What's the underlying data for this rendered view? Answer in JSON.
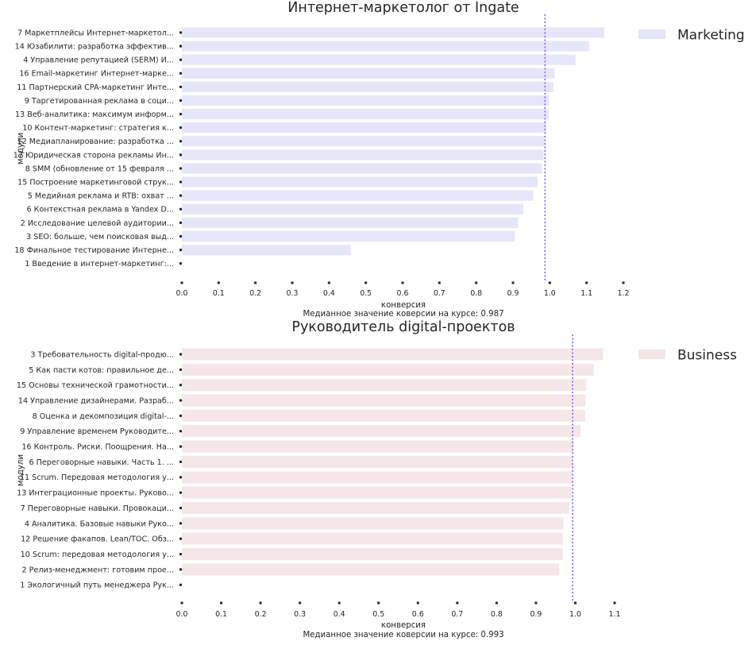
{
  "chart_data": [
    {
      "type": "bar",
      "orientation": "horizontal",
      "title": "Интернет-маркетолог от Ingate",
      "xlabel": "конверсия",
      "ylabel": "модули",
      "footnote": "Медианное значение коверсии на курсе: 0.987",
      "median": 0.987,
      "legend": {
        "label": "Marketing",
        "position": "top-right"
      },
      "color": "#e6e6fa",
      "xlim": [
        0.0,
        1.2
      ],
      "xticks": [
        "0.0",
        "0.1",
        "0.2",
        "0.3",
        "0.4",
        "0.5",
        "0.6",
        "0.7",
        "0.8",
        "0.9",
        "1.0",
        "1.1",
        "1.2"
      ],
      "grid": false,
      "categories": [
        "7 Маркетплейсы Интернет-маркетол...",
        "14 Юзабилити: разработка эффектив...",
        "4 Управление репутацией (SERM) И...",
        "16 Email-маркетинг Интернет-марке...",
        "11 Партнерский CPA-маркетинг Инте...",
        "9 Таргетированная реклама в соци...",
        "13 Веб-аналитика: максимум информ...",
        "10 Контент-маркетинг: стратегия к...",
        "12 Медиапланирование: разработка ...",
        "17 Юридическая сторона рекламы Ин...",
        "8 SMM (обновление от 15 февраля ...",
        "15 Построение маркетинговой струк...",
        "5 Медийная реклама и RTB: охват ...",
        "6 Контекстная реклама в Yandex D...",
        "2 Исследование целевой аудитории...",
        "3 SEO: больше, чем поисковая выд...",
        "18 Финальное тестирование Интерне...",
        "1 Введение в интернет-маркетинг:..."
      ],
      "values": [
        1.148,
        1.107,
        1.07,
        1.013,
        1.01,
        0.998,
        0.997,
        0.99,
        0.987,
        0.983,
        0.978,
        0.967,
        0.955,
        0.928,
        0.914,
        0.905,
        0.459,
        0.0
      ]
    },
    {
      "type": "bar",
      "orientation": "horizontal",
      "title": "Руководитель digital-проектов",
      "xlabel": "конверсия",
      "ylabel": "модули",
      "footnote": "Медианное значение коверсии на курсе: 0.993",
      "median": 0.993,
      "legend": {
        "label": "Business",
        "position": "top-right"
      },
      "color": "#f5e6e8",
      "xlim": [
        0.0,
        1.1
      ],
      "xticks": [
        "0.0",
        "0.1",
        "0.2",
        "0.3",
        "0.4",
        "0.5",
        "0.6",
        "0.7",
        "0.8",
        "0.9",
        "1.0",
        "1.1"
      ],
      "grid": false,
      "categories": [
        "3 Требовательность digital-продю...",
        "5 Как пасти котов: правильное де...",
        "15 Основы технической грамотности...",
        "14 Управление дизайнерами. Разраб...",
        "8 Оценка и декомпозиция digital-...",
        "9 Управление временем Руководите...",
        "16 Контроль. Риски. Поощрения. На...",
        "6 Переговорные навыки. Часть 1. ...",
        "11 Scrum. Передовая методология у...",
        "13 Интеграционные проекты. Руково...",
        "7 Переговорные навыки. Провокаци...",
        "4 Аналитика. Базовые навыки Руко...",
        "12 Решение факапов. Lean/TOC. Обз...",
        "10 Scrum: передовая методология у...",
        "2 Релиз-менеджмент: готовим прое...",
        "1 Экологичный путь менеджера Рук..."
      ],
      "values": [
        1.071,
        1.047,
        1.028,
        1.026,
        1.025,
        1.013,
        0.995,
        0.993,
        0.992,
        0.99,
        0.985,
        0.97,
        0.968,
        0.968,
        0.959,
        0.0
      ]
    }
  ]
}
